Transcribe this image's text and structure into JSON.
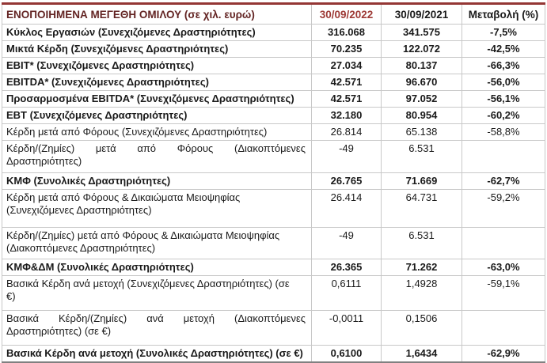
{
  "table": {
    "header": {
      "title": "ΕΝΟΠΟΙΗΜΕΝΑ ΜΕΓΕΘΗ ΟΜΙΛΟΥ (σε χιλ. ευρώ)",
      "col_2022": "30/09/2022",
      "col_2021": "30/09/2021",
      "col_change": "Μεταβολή (%)"
    },
    "colors": {
      "top_border": "#943634",
      "title_text": "#632423",
      "col_2022_text": "#9e3a36",
      "grid": "#c8c8c8",
      "bottom_border": "#808080"
    },
    "rows": [
      {
        "label_lines": [
          "Κύκλος Εργασιών (Συνεχιζόμενες Δραστηριότητες)"
        ],
        "v2022": "316.068",
        "v2021": "341.575",
        "change": "-7,5%",
        "bold": true,
        "justify": false
      },
      {
        "label_lines": [
          "Μικτά Κέρδη (Συνεχιζόμενες Δραστηριότητες)"
        ],
        "v2022": "70.235",
        "v2021": "122.072",
        "change": "-42,5%",
        "bold": true,
        "justify": false
      },
      {
        "label_lines": [
          "EBIT* (Συνεχιζόμενες Δραστηριότητες)"
        ],
        "v2022": "27.034",
        "v2021": "80.137",
        "change": "-66,3%",
        "bold": true,
        "justify": false
      },
      {
        "label_lines": [
          "EBITDA* (Συνεχιζόμενες Δραστηριότητες)"
        ],
        "v2022": "42.571",
        "v2021": "96.670",
        "change": "-56,0%",
        "bold": true,
        "justify": false
      },
      {
        "label_lines": [
          "Προσαρμοσμένα EBITDA* (Συνεχιζόμενες Δραστηριότητες)"
        ],
        "v2022": "42.571",
        "v2021": "97.052",
        "change": "-56,1%",
        "bold": true,
        "justify": false
      },
      {
        "label_lines": [
          "EBT (Συνεχιζόμενες Δραστηριότητες)"
        ],
        "v2022": "32.180",
        "v2021": "80.954",
        "change": "-60,2%",
        "bold": true,
        "justify": false
      },
      {
        "label_lines": [
          "Κέρδη μετά από Φόρους (Συνεχιζόμενες Δραστηριότητες)"
        ],
        "v2022": "26.814",
        "v2021": "65.138",
        "change": "-58,8%",
        "bold": false,
        "justify": false
      },
      {
        "label_lines": [
          "Κέρδη/(Ζημίες) μετά από Φόρους (Διακοπτόμενες",
          "Δραστηριότητες)"
        ],
        "v2022": "-49",
        "v2021": "6.531",
        "change": "",
        "bold": false,
        "justify": true
      },
      {
        "label_lines": [
          "ΚΜΦ (Συνολικές Δραστηριότητες)"
        ],
        "v2022": "26.765",
        "v2021": "71.669",
        "change": "-62,7%",
        "bold": true,
        "justify": false
      },
      {
        "label_lines": [
          "Κέρδη μετά από Φόρους & Δικαιώματα Μειοψηφίας",
          "(Συνεχιζόμενες Δραστηριότητες)"
        ],
        "v2022": "26.414",
        "v2021": "64.731",
        "change": "-59,2%",
        "bold": false,
        "justify": false
      },
      {
        "label_lines": [
          "Κέρδη/(Ζημίες) μετά από Φόρους & Δικαιώματα Μειοψηφίας",
          "(Διακοπτόμενες Δραστηριότητες)"
        ],
        "v2022": "-49",
        "v2021": "6.531",
        "change": "",
        "bold": false,
        "justify": false
      },
      {
        "label_lines": [
          "ΚΜΦ&ΔΜ (Συνολικές Δραστηριότητες)"
        ],
        "v2022": "26.365",
        "v2021": "71.262",
        "change": "-63,0%",
        "bold": true,
        "justify": false
      },
      {
        "label_lines": [
          "Βασικά Κέρδη ανά μετοχή (Συνεχιζόμενες Δραστηριότητες) (σε",
          "€)"
        ],
        "v2022": "0,6111",
        "v2021": "1,4928",
        "change": "-59,1%",
        "bold": false,
        "justify": false
      },
      {
        "label_lines": [
          "Βασικά Κέρδη/(Ζημίες) ανά μετοχή (Διακοπτόμενες",
          "Δραστηριότητες) (σε €)"
        ],
        "v2022": "-0,0011",
        "v2021": "0,1506",
        "change": "",
        "bold": false,
        "justify": true
      },
      {
        "label_lines": [
          "Βασικά Κέρδη ανά μετοχή (Συνολικές Δραστηριότητες) (σε €)"
        ],
        "v2022": "0,6100",
        "v2021": "1,6434",
        "change": "-62,9%",
        "bold": true,
        "justify": false
      }
    ]
  }
}
